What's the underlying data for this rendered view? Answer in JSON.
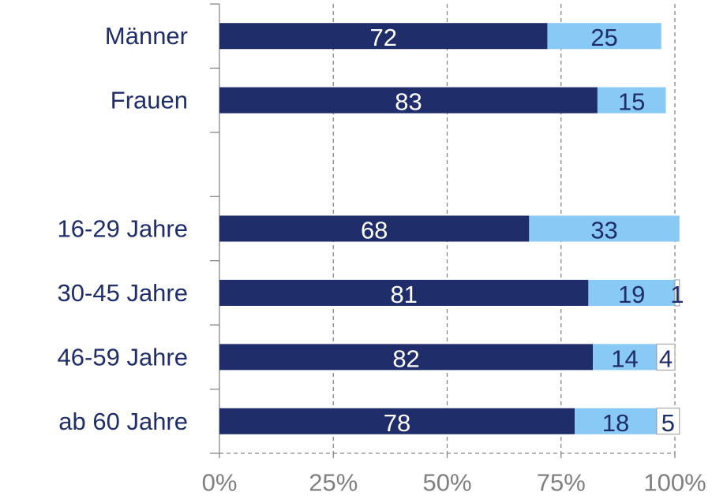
{
  "chart_data": {
    "type": "stacked-barh",
    "categories": [
      "Männer",
      "Frauen",
      null,
      "16-29 Jahre",
      "30-45 Jahre",
      "46-59 Jahre",
      "ab 60 Jahre"
    ],
    "series": [
      {
        "color": "#1f2d6b",
        "values": [
          72,
          83,
          null,
          68,
          81,
          82,
          78
        ]
      },
      {
        "color": "#88c9f5",
        "values": [
          25,
          15,
          null,
          33,
          19,
          14,
          18
        ]
      },
      {
        "color": "#ffffff",
        "values": [
          null,
          null,
          null,
          null,
          1,
          4,
          5
        ]
      }
    ],
    "xlim": [
      0,
      100
    ],
    "xticks": [
      {
        "value": 0,
        "label": "0%"
      },
      {
        "value": 25,
        "label": "25%"
      },
      {
        "value": 50,
        "label": "50%"
      },
      {
        "value": 75,
        "label": "75%"
      },
      {
        "value": 100,
        "label": "100%"
      }
    ],
    "grid": true
  }
}
